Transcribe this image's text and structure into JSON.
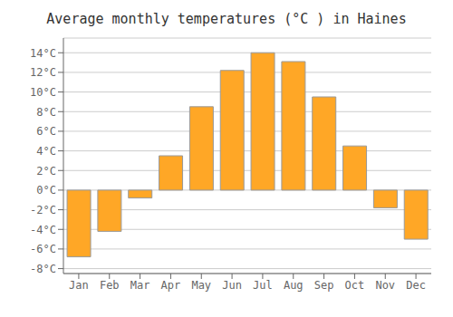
{
  "chart_data": {
    "type": "bar",
    "title": "Average monthly temperatures (°C ) in Haines",
    "categories": [
      "Jan",
      "Feb",
      "Mar",
      "Apr",
      "May",
      "Jun",
      "Jul",
      "Aug",
      "Sep",
      "Oct",
      "Nov",
      "Dec"
    ],
    "values": [
      -6.8,
      -4.2,
      -0.8,
      3.5,
      8.5,
      12.2,
      14.0,
      13.1,
      9.5,
      4.5,
      -1.8,
      -5.0
    ],
    "color": "#FFA726",
    "ylim": [
      -8.5,
      15.5
    ],
    "yticks": [
      {
        "value": -8,
        "label": "-8°C"
      },
      {
        "value": -6,
        "label": "-6°C"
      },
      {
        "value": -4,
        "label": "-4°C"
      },
      {
        "value": -2,
        "label": "-2°C"
      },
      {
        "value": 0,
        "label": "0°C"
      },
      {
        "value": 2,
        "label": "2°C"
      },
      {
        "value": 4,
        "label": "4°C"
      },
      {
        "value": 6,
        "label": "6°C"
      },
      {
        "value": 8,
        "label": "8°C"
      },
      {
        "value": 10,
        "label": "10°C"
      },
      {
        "value": 12,
        "label": "12°C"
      },
      {
        "value": 14,
        "label": "14°C"
      }
    ],
    "grid": true
  }
}
